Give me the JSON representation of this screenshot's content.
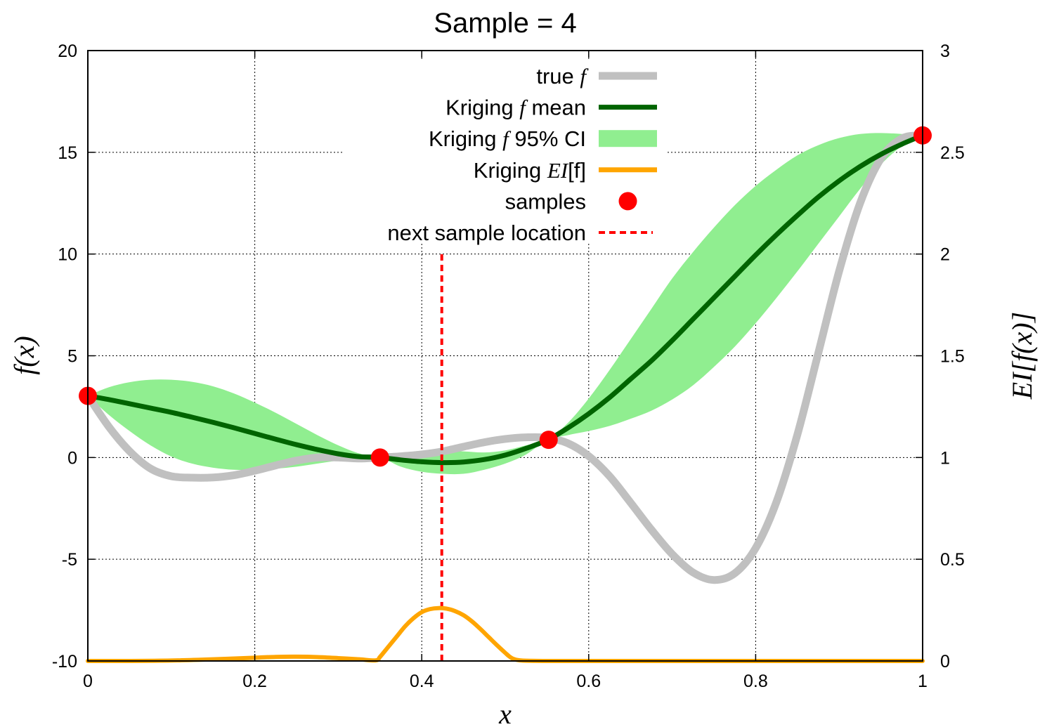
{
  "chart_data": {
    "type": "line",
    "title": "Sample = 4",
    "xlabel": "x",
    "ylabel": "f(x)",
    "y2label": "EI[f(x)]",
    "xlim": [
      0,
      1
    ],
    "ylim": [
      -10,
      20
    ],
    "y2lim": [
      0,
      3
    ],
    "x_ticks": [
      0,
      0.2,
      0.4,
      0.6,
      0.8,
      1
    ],
    "x_tick_labels": [
      "0",
      "0.2",
      "0.4",
      "0.6",
      "0.8",
      "1"
    ],
    "y_ticks": [
      -10,
      -5,
      0,
      5,
      10,
      15,
      20
    ],
    "y_tick_labels": [
      "-10",
      "-5",
      "0",
      "5",
      "10",
      "15",
      "20"
    ],
    "y2_ticks": [
      0,
      0.5,
      1,
      1.5,
      2,
      2.5,
      3
    ],
    "y2_tick_labels": [
      "0",
      "0.5",
      "1",
      "1.5",
      "2",
      "2.5",
      "3"
    ],
    "grid": true,
    "legend_position": "top-center",
    "series": [
      {
        "name": "true f",
        "legend_label": "true ",
        "legend_italic": "f",
        "legend_suffix": "",
        "kind": "line",
        "axis": "y",
        "color": "#c0c0c0",
        "x": [
          0,
          0.025,
          0.05,
          0.075,
          0.1,
          0.125,
          0.15,
          0.175,
          0.2,
          0.225,
          0.25,
          0.275,
          0.3,
          0.325,
          0.35,
          0.375,
          0.4,
          0.425,
          0.45,
          0.475,
          0.5,
          0.525,
          0.55,
          0.575,
          0.6,
          0.625,
          0.65,
          0.675,
          0.7,
          0.725,
          0.75,
          0.775,
          0.8,
          0.825,
          0.85,
          0.875,
          0.9,
          0.925,
          0.95,
          0.975,
          1
        ],
        "y": [
          3.03,
          1.52,
          0.31,
          -0.54,
          -0.92,
          -0.99,
          -0.98,
          -0.87,
          -0.65,
          -0.39,
          -0.15,
          0,
          0,
          -0.05,
          0,
          0.06,
          0.15,
          0.3,
          0.53,
          0.75,
          0.91,
          0.99,
          0.97,
          0.7,
          0.07,
          -0.92,
          -2.21,
          -3.54,
          -4.75,
          -5.65,
          -6.02,
          -5.69,
          -4.45,
          -2.17,
          1.13,
          5.13,
          9.16,
          12.49,
          14.69,
          15.68,
          15.83
        ]
      },
      {
        "name": "Kriging f mean",
        "legend_label": "Kriging ",
        "legend_italic": "f",
        "legend_suffix": " mean",
        "kind": "line",
        "axis": "y",
        "color": "#006400",
        "x": [
          0,
          0.025,
          0.05,
          0.075,
          0.1,
          0.125,
          0.15,
          0.175,
          0.2,
          0.225,
          0.25,
          0.275,
          0.3,
          0.325,
          0.35,
          0.375,
          0.4,
          0.425,
          0.45,
          0.475,
          0.5,
          0.525,
          0.55,
          0.575,
          0.6,
          0.625,
          0.65,
          0.675,
          0.7,
          0.725,
          0.75,
          0.775,
          0.8,
          0.825,
          0.85,
          0.875,
          0.9,
          0.925,
          0.95,
          0.975,
          1
        ],
        "y": [
          3.03,
          2.85,
          2.64,
          2.43,
          2.22,
          1.98,
          1.73,
          1.46,
          1.18,
          0.9,
          0.63,
          0.39,
          0.18,
          0.04,
          0,
          -0.12,
          -0.21,
          -0.25,
          -0.22,
          -0.1,
          0.12,
          0.45,
          0.85,
          1.45,
          2.15,
          2.95,
          3.85,
          4.75,
          5.75,
          6.8,
          7.85,
          8.9,
          9.95,
          10.95,
          11.9,
          12.8,
          13.6,
          14.3,
          14.9,
          15.4,
          15.83
        ]
      },
      {
        "name": "Kriging f 95% CI",
        "legend_label": "Kriging ",
        "legend_italic": "f",
        "legend_suffix": " 95% CI",
        "kind": "band",
        "axis": "y",
        "color": "#90ee90",
        "x": [
          0,
          0.025,
          0.05,
          0.075,
          0.1,
          0.125,
          0.15,
          0.175,
          0.2,
          0.225,
          0.25,
          0.275,
          0.3,
          0.325,
          0.35,
          0.375,
          0.4,
          0.425,
          0.45,
          0.475,
          0.5,
          0.525,
          0.55,
          0.575,
          0.6,
          0.625,
          0.65,
          0.675,
          0.7,
          0.725,
          0.75,
          0.775,
          0.8,
          0.825,
          0.85,
          0.875,
          0.9,
          0.925,
          0.95,
          0.975,
          1
        ],
        "y_low": [
          3.03,
          2.1,
          1.3,
          0.6,
          0.05,
          -0.3,
          -0.5,
          -0.6,
          -0.6,
          -0.55,
          -0.45,
          -0.3,
          -0.15,
          -0.05,
          0,
          -0.45,
          -0.7,
          -0.8,
          -0.8,
          -0.6,
          -0.3,
          0.15,
          0.85,
          1.1,
          1.3,
          1.55,
          1.9,
          2.3,
          2.85,
          3.55,
          4.45,
          5.45,
          6.6,
          7.85,
          9.15,
          10.5,
          11.85,
          13.2,
          14.4,
          15.3,
          15.83
        ],
        "y_high": [
          3.03,
          3.45,
          3.7,
          3.82,
          3.82,
          3.72,
          3.5,
          3.15,
          2.7,
          2.2,
          1.65,
          1.1,
          0.6,
          0.2,
          0,
          0.2,
          0.33,
          0.35,
          0.3,
          0.25,
          0.35,
          0.6,
          0.85,
          1.7,
          2.9,
          4.3,
          5.8,
          7.3,
          8.8,
          10.1,
          11.3,
          12.4,
          13.35,
          14.15,
          14.85,
          15.35,
          15.7,
          15.9,
          15.95,
          15.9,
          15.83
        ]
      },
      {
        "name": "Kriging EI[f]",
        "legend_label": "Kriging ",
        "legend_italic": "EI",
        "legend_suffix": "[f]",
        "kind": "line",
        "axis": "y2",
        "color": "#ffa500",
        "x": [
          0,
          0.05,
          0.1,
          0.15,
          0.2,
          0.225,
          0.25,
          0.275,
          0.3,
          0.325,
          0.345,
          0.35,
          0.36,
          0.37,
          0.38,
          0.39,
          0.4,
          0.41,
          0.42,
          0.43,
          0.44,
          0.45,
          0.46,
          0.47,
          0.48,
          0.49,
          0.5,
          0.505,
          0.51,
          0.52,
          0.55,
          0.6,
          0.7,
          0.8,
          0.9,
          1
        ],
        "y": [
          0,
          0,
          0.002,
          0.008,
          0.016,
          0.02,
          0.021,
          0.019,
          0.014,
          0.008,
          0.003,
          0.02,
          0.07,
          0.12,
          0.17,
          0.21,
          0.24,
          0.255,
          0.26,
          0.257,
          0.245,
          0.225,
          0.195,
          0.158,
          0.118,
          0.078,
          0.04,
          0.022,
          0.01,
          0.002,
          0,
          0,
          0,
          0,
          0,
          0
        ]
      },
      {
        "name": "samples",
        "legend_label": "samples",
        "legend_italic": "",
        "legend_suffix": "",
        "kind": "points",
        "axis": "y",
        "color": "#ff0000",
        "x": [
          0,
          0.35,
          0.552,
          1
        ],
        "y": [
          3.03,
          0,
          0.87,
          15.83
        ]
      },
      {
        "name": "next sample location",
        "legend_label": "next sample location",
        "legend_italic": "",
        "legend_suffix": "",
        "kind": "vline",
        "axis": "y",
        "color": "#ff0000",
        "x": [
          0.424,
          0.424
        ],
        "y": [
          -10,
          10
        ]
      }
    ]
  }
}
